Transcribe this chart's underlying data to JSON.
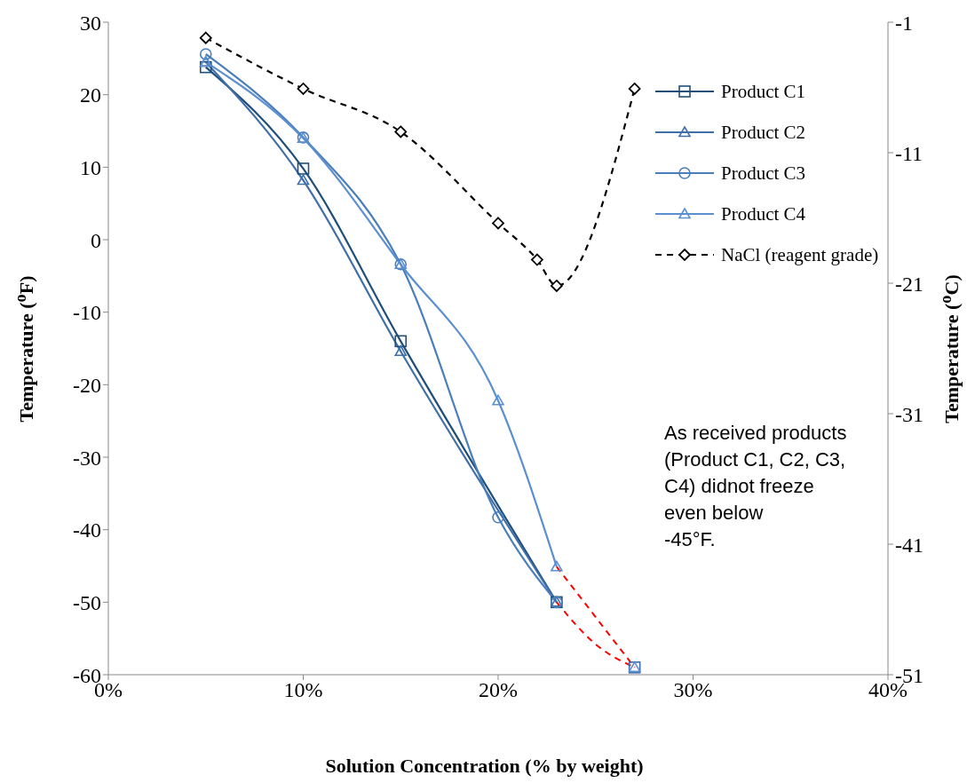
{
  "chart_data": {
    "type": "line",
    "xlabel": "Solution Concentration (% by weight)",
    "ylabel": "Temperature ($^{o}$F)",
    "y2label": "Temperature ($^{o}$C)",
    "xlim": [
      0,
      40
    ],
    "xticks": [
      {
        "value": 0,
        "label": "0%"
      },
      {
        "value": 10,
        "label": "10%"
      },
      {
        "value": 20,
        "label": "20%"
      },
      {
        "value": 30,
        "label": "30%"
      },
      {
        "value": 40,
        "label": "40%"
      }
    ],
    "ylim": [
      -60,
      30
    ],
    "yticks": [
      -60,
      -50,
      -40,
      -30,
      -20,
      -10,
      0,
      10,
      20,
      30
    ],
    "y2lim": [
      -51,
      -1
    ],
    "y2ticks": [
      -51,
      -41,
      -31,
      -21,
      -11,
      -1
    ],
    "grid": false,
    "legend": "top right",
    "annotations": [
      "As received products (Product C1, C2, C3, C4) didnot freeze even below        -45°F."
    ],
    "series": [
      {
        "name": "Product C1",
        "color": "#1f4e79",
        "marker": "square",
        "line_style": "solid",
        "x": [
          5,
          10,
          15,
          23
        ],
        "values": [
          23.8,
          9.8,
          -14,
          -50
        ]
      },
      {
        "name": "Product C2",
        "color": "#3f6fa8",
        "marker": "triangle",
        "line_style": "solid",
        "x": [
          5,
          10,
          15,
          23
        ],
        "values": [
          24.5,
          8.2,
          -15.4,
          -50
        ]
      },
      {
        "name": "Product C3",
        "color": "#4a7ebb",
        "marker": "circle",
        "line_style": "solid",
        "x": [
          5,
          10,
          15,
          20,
          23
        ],
        "values": [
          25.6,
          14.1,
          -3.4,
          -38.3,
          -50
        ]
      },
      {
        "name": "Product C4",
        "color": "#5b8fd0",
        "marker": "triangle",
        "line_style": "solid",
        "x": [
          5,
          10,
          15,
          20,
          23
        ],
        "values": [
          24.5,
          14,
          -3.4,
          -22.2,
          -45.1
        ]
      },
      {
        "name": "NaCl (reagent grade)",
        "color": "#000000",
        "marker": "diamond",
        "line_style": "dashed",
        "axis": "y2",
        "x": [
          5,
          10,
          15,
          20,
          22,
          23,
          27
        ],
        "values": [
          -2.2,
          -6.1,
          -9.4,
          -16.4,
          -19.2,
          -21.2,
          -6.1
        ]
      },
      {
        "color": "#ff0000",
        "marker": "none",
        "line_style": "dashed",
        "x": [
          23,
          27
        ],
        "values": [
          -45.1,
          -59
        ]
      },
      {
        "color": "#ff0000",
        "marker": "none",
        "line_style": "dashed",
        "x": [
          23,
          25,
          27
        ],
        "values": [
          -50,
          -55.8,
          -59
        ]
      },
      {
        "type": "scatter",
        "color": "#3f6fa8",
        "marker": "square",
        "x": [
          27
        ],
        "values": [
          -59
        ]
      },
      {
        "type": "scatter",
        "color": "#5b8fd0",
        "marker": "triangle",
        "x": [
          27
        ],
        "values": [
          -59
        ]
      }
    ]
  }
}
